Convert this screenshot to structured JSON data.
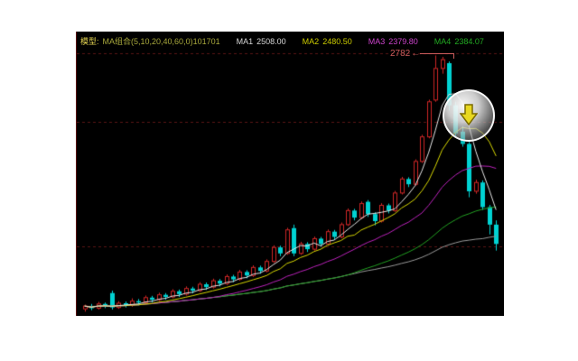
{
  "header": {
    "model_label": "模型:",
    "model_formula": "MA组合(5,10,20,40,60,0)101701",
    "ma1_label": "MA1",
    "ma1_value": "2508.00",
    "ma2_label": "MA2",
    "ma2_value": "2480.50",
    "ma3_label": "MA3",
    "ma3_value": "2379.80",
    "ma4_label": "MA4",
    "ma4_value": "2384.07"
  },
  "annotation": {
    "peak_label": "2782",
    "arrow_glyph": "←",
    "color": "#cc5c5c"
  },
  "watermark": {
    "icon": "down-arrow-icon",
    "arrow_color": "#e8d820",
    "arrow_outline": "#7a6a00"
  },
  "colors": {
    "panel_background": "#000000",
    "page_background": "#ffffff",
    "border_red": "#5a1414",
    "header_yellow": "#e0d050",
    "ma1_white": "#d8d8d8",
    "ma2_yellow": "#cccc00",
    "ma3_magenta": "#cc44cc",
    "ma4_green": "#22aa22"
  },
  "chart_data": {
    "type": "candlestick",
    "title": "",
    "xlabel": "",
    "ylabel": "",
    "ylim": [
      2040,
      2850
    ],
    "grid": "dashed-horizontal",
    "legend_position": "none",
    "gridlines_price": [
      2788,
      2593,
      2238
    ],
    "grid_color": "#5a1414",
    "up_color": "#cc2626",
    "down_color": "#00d2d2",
    "peak_annotation": {
      "text": "2782",
      "price": 2782,
      "candle_index": 52
    },
    "moving_averages": [
      {
        "name": "MA60",
        "period": 60,
        "color": "#999999"
      },
      {
        "name": "MA40",
        "period": 40,
        "color": "#22a022"
      },
      {
        "name": "MA20",
        "period": 20,
        "color": "#bb22bb"
      },
      {
        "name": "MA10",
        "period": 10,
        "color": "#d8d800"
      },
      {
        "name": "MA5",
        "period": 5,
        "color": "#e6e6e6"
      }
    ],
    "candles": [
      [
        2060,
        2072,
        2052,
        2068
      ],
      [
        2068,
        2074,
        2056,
        2062
      ],
      [
        2062,
        2080,
        2058,
        2074
      ],
      [
        2074,
        2078,
        2062,
        2070
      ],
      [
        2105,
        2112,
        2058,
        2064
      ],
      [
        2064,
        2082,
        2060,
        2076
      ],
      [
        2076,
        2081,
        2064,
        2070
      ],
      [
        2070,
        2090,
        2066,
        2082
      ],
      [
        2082,
        2088,
        2070,
        2078
      ],
      [
        2078,
        2098,
        2074,
        2092
      ],
      [
        2092,
        2097,
        2078,
        2086
      ],
      [
        2086,
        2106,
        2082,
        2100
      ],
      [
        2100,
        2105,
        2086,
        2094
      ],
      [
        2094,
        2116,
        2090,
        2110
      ],
      [
        2110,
        2115,
        2094,
        2102
      ],
      [
        2102,
        2124,
        2098,
        2118
      ],
      [
        2118,
        2123,
        2104,
        2112
      ],
      [
        2112,
        2136,
        2108,
        2130
      ],
      [
        2130,
        2135,
        2114,
        2122
      ],
      [
        2122,
        2146,
        2118,
        2140
      ],
      [
        2140,
        2145,
        2124,
        2132
      ],
      [
        2132,
        2158,
        2128,
        2152
      ],
      [
        2152,
        2157,
        2136,
        2144
      ],
      [
        2144,
        2171,
        2140,
        2165
      ],
      [
        2165,
        2170,
        2147,
        2155
      ],
      [
        2155,
        2184,
        2151,
        2178
      ],
      [
        2178,
        2183,
        2160,
        2168
      ],
      [
        2168,
        2201,
        2164,
        2195
      ],
      [
        2195,
        2241,
        2191,
        2235
      ],
      [
        2235,
        2240,
        2210,
        2218
      ],
      [
        2218,
        2291,
        2214,
        2285
      ],
      [
        2290,
        2300,
        2210,
        2218
      ],
      [
        2218,
        2251,
        2214,
        2245
      ],
      [
        2245,
        2250,
        2222,
        2230
      ],
      [
        2230,
        2266,
        2226,
        2260
      ],
      [
        2260,
        2265,
        2237,
        2245
      ],
      [
        2245,
        2286,
        2241,
        2280
      ],
      [
        2280,
        2285,
        2257,
        2265
      ],
      [
        2265,
        2306,
        2261,
        2300
      ],
      [
        2300,
        2346,
        2296,
        2340
      ],
      [
        2340,
        2345,
        2312,
        2320
      ],
      [
        2320,
        2366,
        2316,
        2360
      ],
      [
        2365,
        2370,
        2322,
        2330
      ],
      [
        2330,
        2335,
        2298,
        2310
      ],
      [
        2310,
        2361,
        2306,
        2355
      ],
      [
        2355,
        2360,
        2332,
        2340
      ],
      [
        2340,
        2396,
        2336,
        2390
      ],
      [
        2390,
        2436,
        2386,
        2430
      ],
      [
        2430,
        2435,
        2407,
        2415
      ],
      [
        2415,
        2486,
        2411,
        2480
      ],
      [
        2480,
        2556,
        2476,
        2550
      ],
      [
        2550,
        2656,
        2546,
        2650
      ],
      [
        2655,
        2782,
        2650,
        2745
      ],
      [
        2745,
        2778,
        2730,
        2770
      ],
      [
        2760,
        2765,
        2625,
        2640
      ],
      [
        2640,
        2650,
        2550,
        2560
      ],
      [
        2565,
        2580,
        2522,
        2530
      ],
      [
        2530,
        2540,
        2378,
        2395
      ],
      [
        2395,
        2428,
        2388,
        2420
      ],
      [
        2420,
        2426,
        2342,
        2350
      ],
      [
        2350,
        2356,
        2272,
        2300
      ],
      [
        2300,
        2312,
        2226,
        2245
      ]
    ]
  }
}
